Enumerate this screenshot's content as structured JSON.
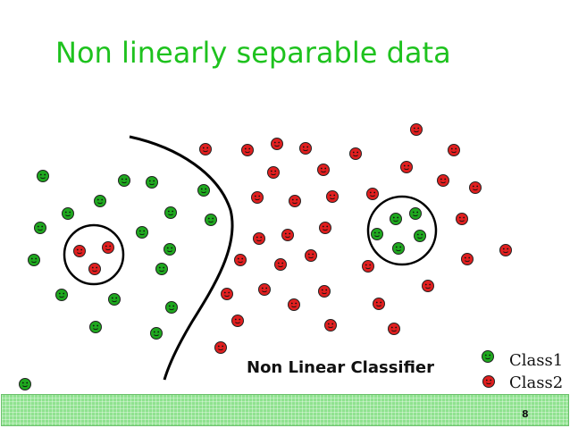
{
  "slide": {
    "title": "Non linearly separable data",
    "classifier_label": "Non Linear Classifier",
    "page_number": "8"
  },
  "legend": [
    {
      "label": "Class1",
      "color": "#1fa81f",
      "icon": "green-smiley-icon"
    },
    {
      "label": "Class2",
      "color": "#e01f1f",
      "icon": "red-smiley-icon"
    }
  ],
  "colors": {
    "title": "#1ec21e",
    "class1": "#1fa81f",
    "class2": "#e01f1f",
    "footer": "#8fe28f"
  }
}
